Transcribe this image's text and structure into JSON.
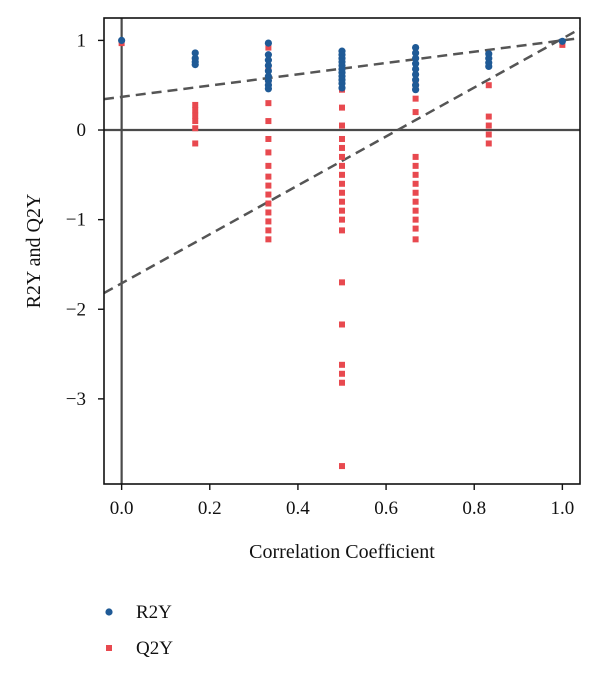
{
  "chart_data": {
    "type": "scatter",
    "title": "",
    "xlabel": "Correlation Coefficient",
    "ylabel": "R2Y and Q2Y",
    "xlim": [
      -0.04,
      1.04
    ],
    "ylim": [
      -3.95,
      1.25
    ],
    "x_ticks": [
      "0.0",
      "0.2",
      "0.4",
      "0.6",
      "0.8",
      "1.0"
    ],
    "y_ticks": [
      "1",
      "0",
      "−1",
      "−2",
      "−3"
    ],
    "legend_position": "bottom-left",
    "colors": {
      "R2Y": "#1f5a96",
      "Q2Y": "#e8494f"
    },
    "series": [
      {
        "name": "R2Y",
        "marker": "circle",
        "points": [
          [
            0.0,
            1.0
          ],
          [
            0.167,
            0.86
          ],
          [
            0.167,
            0.8
          ],
          [
            0.167,
            0.76
          ],
          [
            0.167,
            0.73
          ],
          [
            0.333,
            0.97
          ],
          [
            0.333,
            0.84
          ],
          [
            0.333,
            0.78
          ],
          [
            0.333,
            0.72
          ],
          [
            0.333,
            0.66
          ],
          [
            0.333,
            0.6
          ],
          [
            0.333,
            0.55
          ],
          [
            0.333,
            0.5
          ],
          [
            0.333,
            0.46
          ],
          [
            0.5,
            0.88
          ],
          [
            0.5,
            0.84
          ],
          [
            0.5,
            0.8
          ],
          [
            0.5,
            0.76
          ],
          [
            0.5,
            0.72
          ],
          [
            0.5,
            0.68
          ],
          [
            0.5,
            0.64
          ],
          [
            0.5,
            0.6
          ],
          [
            0.5,
            0.56
          ],
          [
            0.5,
            0.52
          ],
          [
            0.5,
            0.47
          ],
          [
            0.667,
            0.92
          ],
          [
            0.667,
            0.86
          ],
          [
            0.667,
            0.8
          ],
          [
            0.667,
            0.74
          ],
          [
            0.667,
            0.68
          ],
          [
            0.667,
            0.62
          ],
          [
            0.667,
            0.56
          ],
          [
            0.667,
            0.5
          ],
          [
            0.667,
            0.45
          ],
          [
            0.833,
            0.85
          ],
          [
            0.833,
            0.8
          ],
          [
            0.833,
            0.75
          ],
          [
            0.833,
            0.71
          ],
          [
            1.0,
            0.99
          ]
        ]
      },
      {
        "name": "Q2Y",
        "marker": "square",
        "points": [
          [
            0.0,
            0.97
          ],
          [
            0.167,
            0.28
          ],
          [
            0.167,
            0.22
          ],
          [
            0.167,
            0.16
          ],
          [
            0.167,
            0.1
          ],
          [
            0.167,
            0.02
          ],
          [
            0.167,
            -0.15
          ],
          [
            0.333,
            0.92
          ],
          [
            0.333,
            0.7
          ],
          [
            0.333,
            0.5
          ],
          [
            0.333,
            0.3
          ],
          [
            0.333,
            0.1
          ],
          [
            0.333,
            -0.1
          ],
          [
            0.333,
            -0.25
          ],
          [
            0.333,
            -0.4
          ],
          [
            0.333,
            -0.52
          ],
          [
            0.333,
            -0.62
          ],
          [
            0.333,
            -0.72
          ],
          [
            0.333,
            -0.82
          ],
          [
            0.333,
            -0.92
          ],
          [
            0.333,
            -1.02
          ],
          [
            0.333,
            -1.12
          ],
          [
            0.333,
            -1.22
          ],
          [
            0.5,
            0.45
          ],
          [
            0.5,
            0.25
          ],
          [
            0.5,
            0.05
          ],
          [
            0.5,
            -0.1
          ],
          [
            0.5,
            -0.2
          ],
          [
            0.5,
            -0.3
          ],
          [
            0.5,
            -0.4
          ],
          [
            0.5,
            -0.5
          ],
          [
            0.5,
            -0.6
          ],
          [
            0.5,
            -0.7
          ],
          [
            0.5,
            -0.8
          ],
          [
            0.5,
            -0.9
          ],
          [
            0.5,
            -1.0
          ],
          [
            0.5,
            -1.12
          ],
          [
            0.5,
            -1.7
          ],
          [
            0.5,
            -2.17
          ],
          [
            0.5,
            -2.62
          ],
          [
            0.5,
            -2.72
          ],
          [
            0.5,
            -2.82
          ],
          [
            0.5,
            -3.75
          ],
          [
            0.667,
            0.5
          ],
          [
            0.667,
            0.35
          ],
          [
            0.667,
            0.2
          ],
          [
            0.667,
            -0.3
          ],
          [
            0.667,
            -0.4
          ],
          [
            0.667,
            -0.5
          ],
          [
            0.667,
            -0.6
          ],
          [
            0.667,
            -0.7
          ],
          [
            0.667,
            -0.8
          ],
          [
            0.667,
            -0.9
          ],
          [
            0.667,
            -1.0
          ],
          [
            0.667,
            -1.1
          ],
          [
            0.667,
            -1.22
          ],
          [
            0.833,
            0.5
          ],
          [
            0.833,
            0.15
          ],
          [
            0.833,
            0.05
          ],
          [
            0.833,
            -0.05
          ],
          [
            0.833,
            -0.15
          ],
          [
            1.0,
            0.95
          ]
        ]
      }
    ],
    "reference_lines": [
      {
        "name": "R2Y",
        "intercept": 0.37,
        "slope": 0.63
      },
      {
        "name": "Q2Y",
        "intercept": -1.71,
        "slope": 2.73
      }
    ],
    "zero_lines": {
      "x": 0,
      "y": 0
    }
  }
}
